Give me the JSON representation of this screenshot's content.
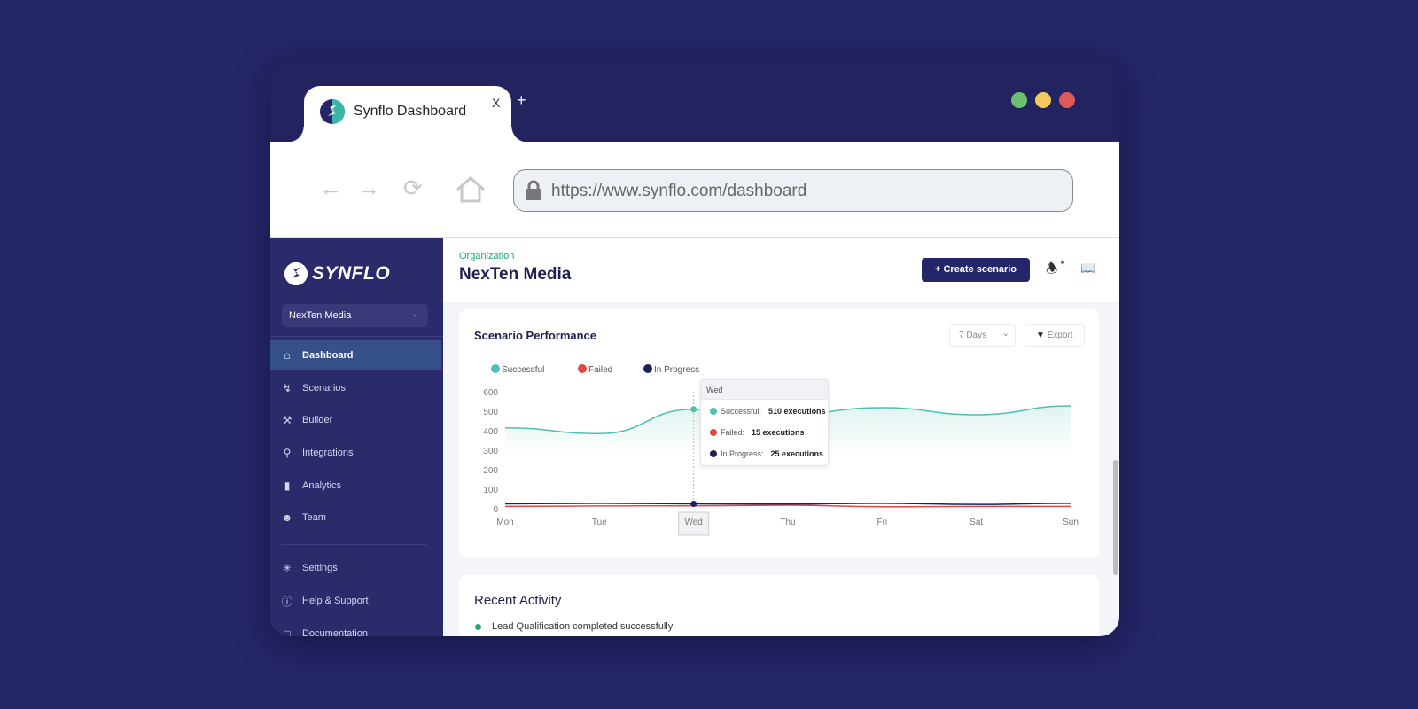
{
  "browser": {
    "tab_title": "Synflo Dashboard",
    "tab_close": "X",
    "new_tab": "+",
    "url": "https://www.synflo.com/dashboard",
    "window_dots": [
      "#6cc070",
      "#f2c95a",
      "#e05a5a"
    ]
  },
  "sidebar": {
    "logo_text": "SYNFLO",
    "org_selector": "NexTen Media",
    "items": [
      {
        "label": "Dashboard",
        "icon": "home-icon",
        "active": true
      },
      {
        "label": "Scenarios",
        "icon": "bolt-icon"
      },
      {
        "label": "Builder",
        "icon": "wrench-icon"
      },
      {
        "label": "Integrations",
        "icon": "network-icon"
      },
      {
        "label": "Analytics",
        "icon": "bar-chart-icon"
      },
      {
        "label": "Team",
        "icon": "users-icon"
      }
    ],
    "bottom_items": [
      {
        "label": "Settings",
        "icon": "gear-icon"
      },
      {
        "label": "Help & Support",
        "icon": "help-icon"
      },
      {
        "label": "Documentation",
        "icon": "doc-icon"
      }
    ]
  },
  "header": {
    "org_label": "Organization",
    "org_name": "NexTen Media",
    "create_button": "Create scenario"
  },
  "performance": {
    "title": "Scenario Performance",
    "range": "7 Days",
    "export": "Export",
    "tooltip": {
      "day": "Wed",
      "rows": [
        {
          "label": "Successful:",
          "value": "510 executions",
          "color": "#4fbfb3"
        },
        {
          "label": "Failed:",
          "value": "15 executions",
          "color": "#e04848"
        },
        {
          "label": "In Progress:",
          "value": "25 executions",
          "color": "#1f1f5c"
        }
      ]
    }
  },
  "chart_data": {
    "type": "area",
    "categories": [
      "Mon",
      "Tue",
      "Wed",
      "Thu",
      "Fri",
      "Sat",
      "Sun"
    ],
    "ylim": [
      0,
      600
    ],
    "yticks": [
      0,
      100,
      200,
      300,
      400,
      500,
      600
    ],
    "grid": false,
    "legend": "top-left",
    "series": [
      {
        "name": "Successful",
        "color": "#4fbfb3",
        "values": [
          415,
          385,
          510,
          485,
          518,
          482,
          527
        ]
      },
      {
        "name": "Failed",
        "color": "#e04848",
        "values": [
          12,
          14,
          15,
          18,
          10,
          12,
          12
        ]
      },
      {
        "name": "In Progress",
        "color": "#1f1f5c",
        "values": [
          25,
          28,
          25,
          24,
          28,
          22,
          28
        ]
      }
    ],
    "highlight": "Wed"
  },
  "activity": {
    "title": "Recent Activity",
    "items": [
      {
        "text": "Lead Qualification completed successfully",
        "color": "#22a56f"
      }
    ]
  }
}
